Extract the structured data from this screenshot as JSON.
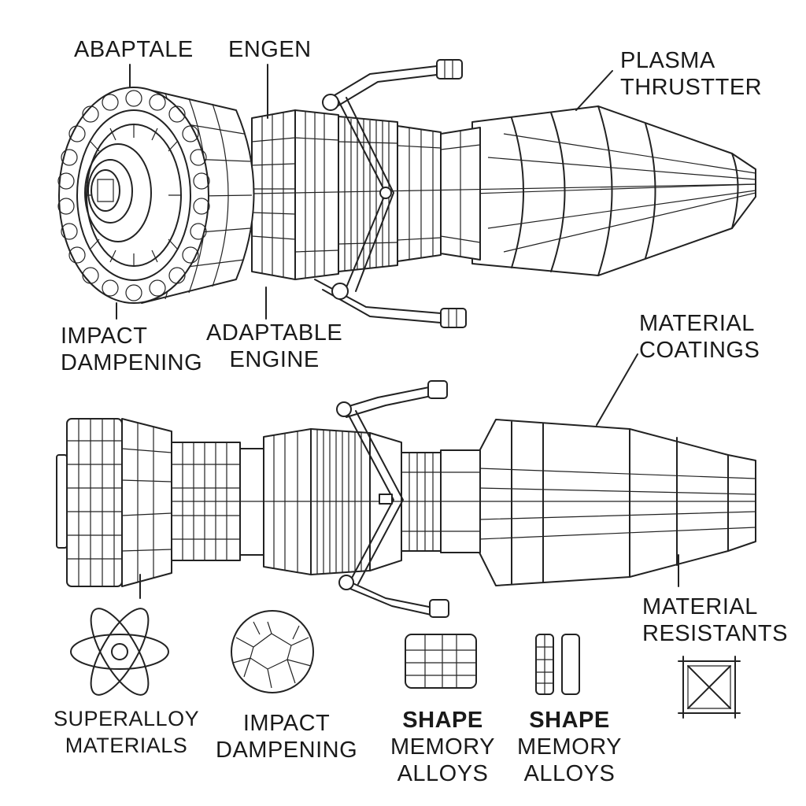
{
  "labels": {
    "abaptale": "ABAPTALE",
    "engen": "ENGEN",
    "plasma_thruster": [
      "PLASMA",
      "THRUSTTER"
    ],
    "impact_dampening_top": [
      "IMPACT",
      "DAMPENING"
    ],
    "adaptable_engine": [
      "ADAPTABLE",
      "ENGINE"
    ],
    "material_coatings": [
      "MATERIAL",
      "COATINGS"
    ],
    "material_resistants": [
      "MATERIAL",
      "RESISTANTS"
    ],
    "superalloy_materials": [
      "SUPERALLOY",
      "MATERIALS"
    ],
    "impact_dampening_bottom": [
      "IMPACT",
      "DAMPENING"
    ],
    "shape_memory_alloys_1": [
      "SHAPE",
      "MEMORY",
      "ALLOYS"
    ],
    "shape_memory_alloys_2": [
      "SHAPE",
      "MEMORY",
      "ALLOYS"
    ]
  },
  "icons": [
    "atom-icon",
    "cracked-sphere-icon",
    "grid-panel-icon",
    "split-panel-icon",
    "cross-brace-frame-icon"
  ],
  "colors": {
    "ink": "#222222",
    "background": "#ffffff"
  }
}
